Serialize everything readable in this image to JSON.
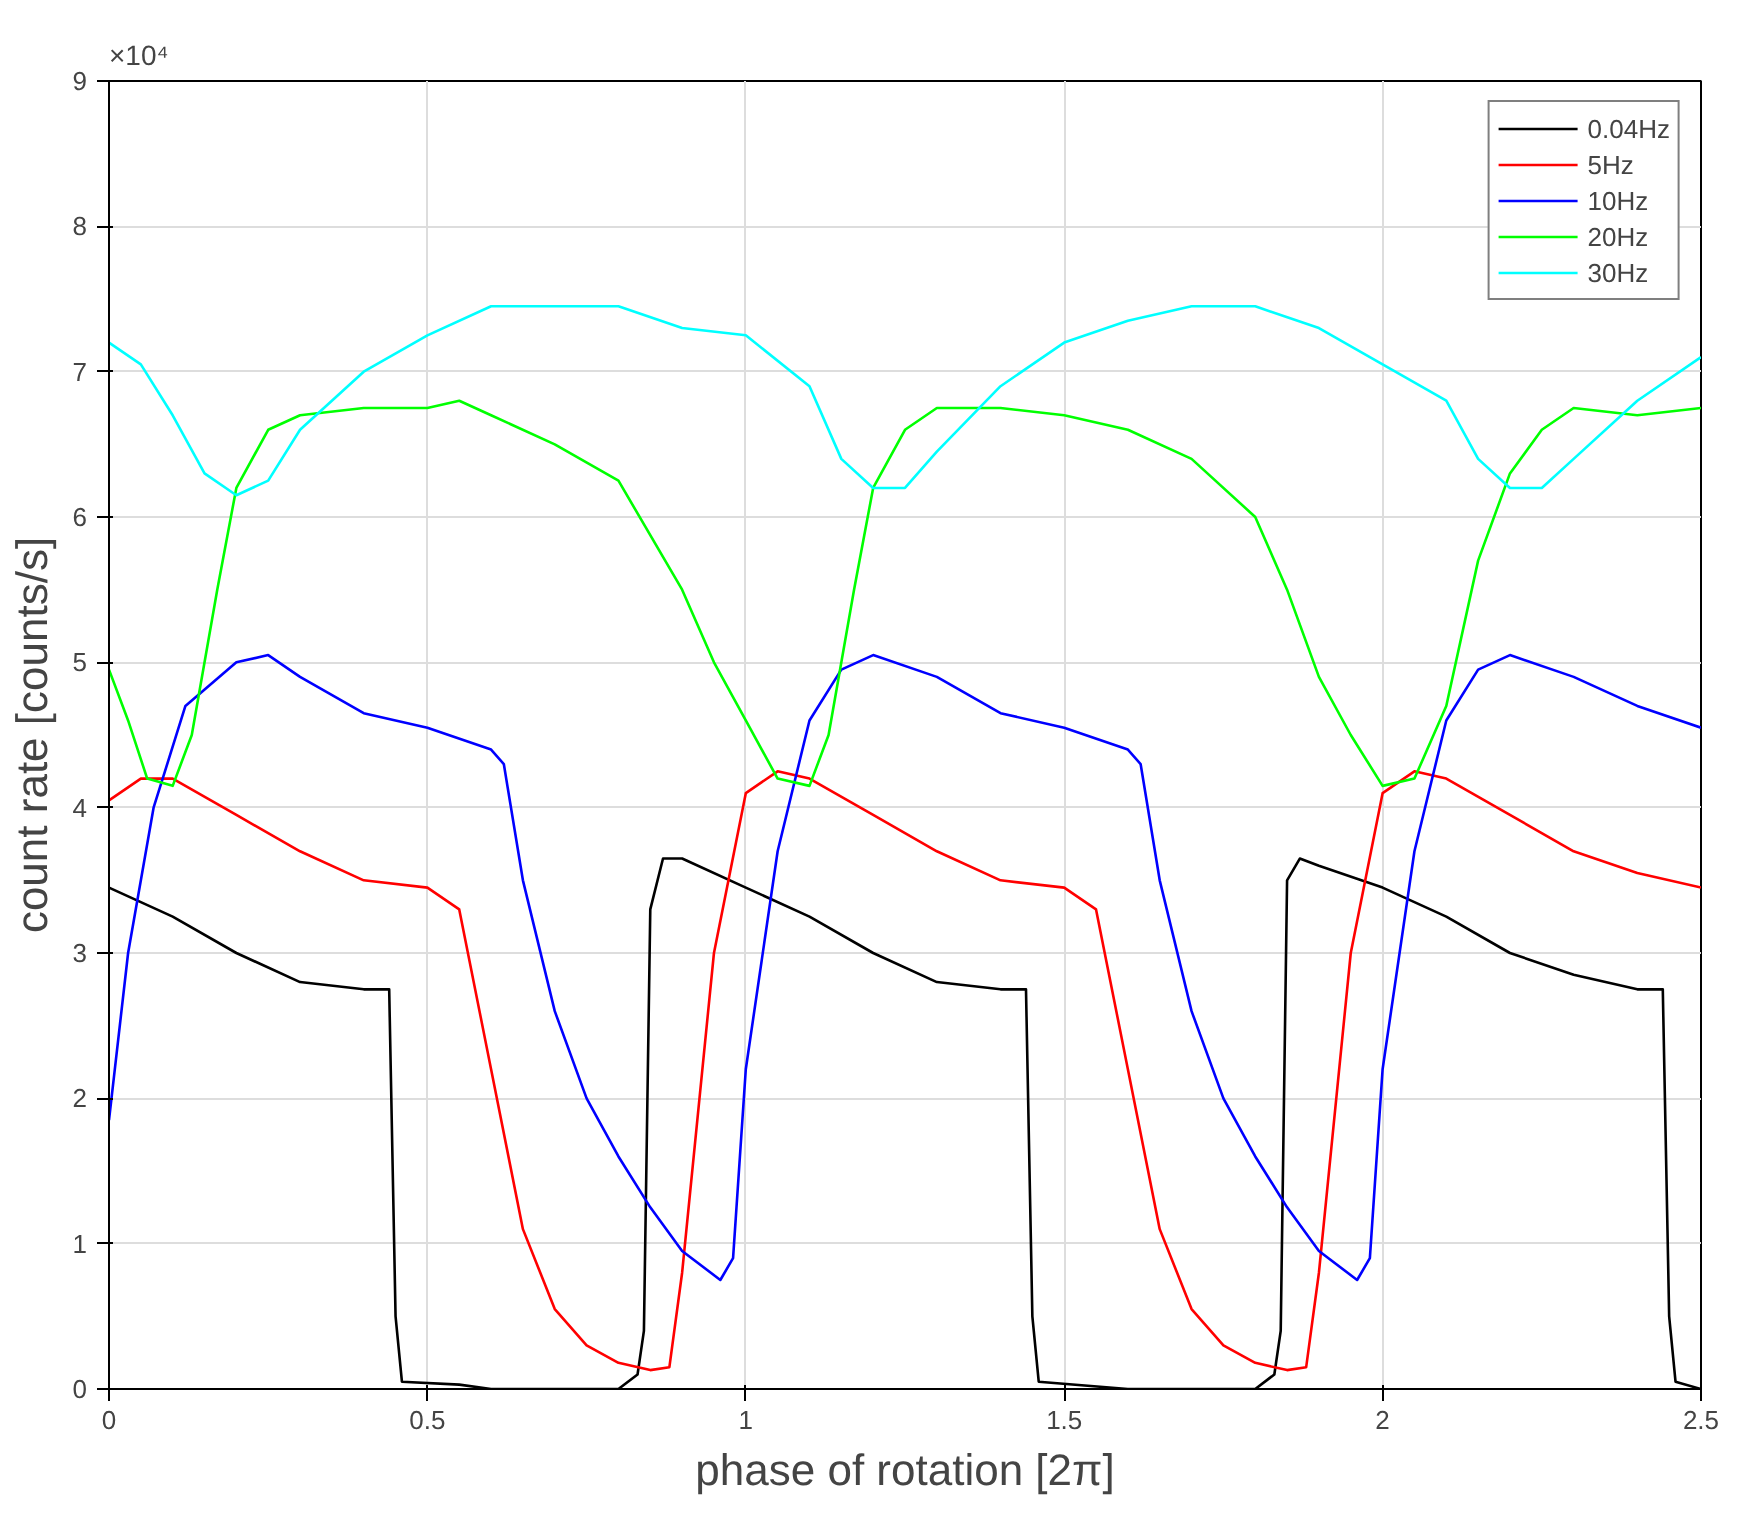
{
  "chart_data": {
    "type": "line",
    "xlabel": "phase of rotation [2π]",
    "ylabel": "count rate [counts/s]",
    "annotations": [
      "×10⁴"
    ],
    "xlim": [
      0,
      2.5
    ],
    "ylim": [
      0,
      9
    ],
    "xticks": [
      0,
      0.5,
      1,
      1.5,
      2,
      2.5
    ],
    "yticks": [
      0,
      1,
      2,
      3,
      4,
      5,
      6,
      7,
      8,
      9
    ],
    "grid": true,
    "legend": "top right",
    "marker": "none",
    "line_style": "solid",
    "series": [
      {
        "name": "0.04Hz",
        "color": "#000000",
        "x": [
          0,
          0.1,
          0.2,
          0.3,
          0.4,
          0.44,
          0.45,
          0.46,
          0.55,
          0.6,
          0.8,
          0.83,
          0.84,
          0.85,
          0.87,
          0.9,
          1.0,
          1.1,
          1.2,
          1.3,
          1.4,
          1.44,
          1.45,
          1.46,
          1.6,
          1.8,
          1.83,
          1.84,
          1.85,
          1.87,
          1.9,
          2.0,
          2.1,
          2.2,
          2.3,
          2.4,
          2.44,
          2.45,
          2.46,
          2.5
        ],
        "values": [
          3.45,
          3.25,
          3.0,
          2.8,
          2.75,
          2.75,
          0.5,
          0.05,
          0.03,
          0,
          0,
          0.1,
          0.4,
          3.3,
          3.65,
          3.65,
          3.45,
          3.25,
          3.0,
          2.8,
          2.75,
          2.75,
          0.5,
          0.05,
          0,
          0,
          0.1,
          0.4,
          3.5,
          3.65,
          3.6,
          3.45,
          3.25,
          3.0,
          2.85,
          2.75,
          2.75,
          0.5,
          0.05,
          0
        ]
      },
      {
        "name": "5Hz",
        "color": "#ff0000",
        "x": [
          0,
          0.05,
          0.1,
          0.2,
          0.3,
          0.4,
          0.5,
          0.55,
          0.6,
          0.65,
          0.7,
          0.75,
          0.8,
          0.85,
          0.88,
          0.9,
          0.95,
          1.0,
          1.05,
          1.1,
          1.2,
          1.3,
          1.4,
          1.5,
          1.55,
          1.6,
          1.65,
          1.7,
          1.75,
          1.8,
          1.85,
          1.88,
          1.9,
          1.95,
          2.0,
          2.05,
          2.1,
          2.2,
          2.3,
          2.4,
          2.5
        ],
        "values": [
          4.05,
          4.2,
          4.2,
          3.95,
          3.7,
          3.5,
          3.45,
          3.3,
          2.2,
          1.1,
          0.55,
          0.3,
          0.18,
          0.13,
          0.15,
          0.8,
          3.0,
          4.1,
          4.25,
          4.2,
          3.95,
          3.7,
          3.5,
          3.45,
          3.3,
          2.2,
          1.1,
          0.55,
          0.3,
          0.18,
          0.13,
          0.15,
          0.8,
          3.0,
          4.1,
          4.25,
          4.2,
          3.95,
          3.7,
          3.55,
          3.45
        ]
      },
      {
        "name": "10Hz",
        "color": "#0000ff",
        "x": [
          0,
          0.03,
          0.07,
          0.12,
          0.2,
          0.25,
          0.3,
          0.4,
          0.5,
          0.6,
          0.62,
          0.65,
          0.7,
          0.75,
          0.8,
          0.85,
          0.9,
          0.96,
          0.98,
          1.0,
          1.05,
          1.1,
          1.15,
          1.2,
          1.3,
          1.4,
          1.5,
          1.6,
          1.62,
          1.65,
          1.7,
          1.75,
          1.8,
          1.85,
          1.9,
          1.96,
          1.98,
          2.0,
          2.05,
          2.1,
          2.15,
          2.2,
          2.3,
          2.4,
          2.5
        ],
        "values": [
          1.85,
          3.0,
          4.0,
          4.7,
          5.0,
          5.05,
          4.9,
          4.65,
          4.55,
          4.4,
          4.3,
          3.5,
          2.6,
          2.0,
          1.6,
          1.25,
          0.95,
          0.75,
          0.9,
          2.2,
          3.7,
          4.6,
          4.95,
          5.05,
          4.9,
          4.65,
          4.55,
          4.4,
          4.3,
          3.5,
          2.6,
          2.0,
          1.6,
          1.25,
          0.95,
          0.75,
          0.9,
          2.2,
          3.7,
          4.6,
          4.95,
          5.05,
          4.9,
          4.7,
          4.55
        ]
      },
      {
        "name": "20Hz",
        "color": "#00ff00",
        "x": [
          0,
          0.03,
          0.06,
          0.1,
          0.13,
          0.17,
          0.2,
          0.25,
          0.3,
          0.4,
          0.5,
          0.55,
          0.6,
          0.7,
          0.8,
          0.9,
          0.95,
          1.0,
          1.05,
          1.1,
          1.13,
          1.17,
          1.2,
          1.25,
          1.3,
          1.4,
          1.5,
          1.6,
          1.7,
          1.8,
          1.85,
          1.9,
          1.95,
          2.0,
          2.05,
          2.1,
          2.15,
          2.2,
          2.25,
          2.3,
          2.4,
          2.5
        ],
        "values": [
          4.95,
          4.6,
          4.2,
          4.15,
          4.5,
          5.5,
          6.2,
          6.6,
          6.7,
          6.75,
          6.75,
          6.8,
          6.7,
          6.5,
          6.25,
          5.5,
          5.0,
          4.6,
          4.2,
          4.15,
          4.5,
          5.5,
          6.2,
          6.6,
          6.75,
          6.75,
          6.7,
          6.6,
          6.4,
          6.0,
          5.5,
          4.9,
          4.5,
          4.15,
          4.2,
          4.7,
          5.7,
          6.3,
          6.6,
          6.75,
          6.7,
          6.75
        ]
      },
      {
        "name": "30Hz",
        "color": "#00ffff",
        "x": [
          0,
          0.05,
          0.1,
          0.15,
          0.2,
          0.25,
          0.3,
          0.4,
          0.5,
          0.6,
          0.7,
          0.8,
          0.9,
          1.0,
          1.1,
          1.15,
          1.2,
          1.25,
          1.3,
          1.4,
          1.5,
          1.6,
          1.7,
          1.8,
          1.9,
          2.0,
          2.1,
          2.15,
          2.2,
          2.25,
          2.3,
          2.4,
          2.5
        ],
        "values": [
          7.2,
          7.05,
          6.7,
          6.3,
          6.15,
          6.25,
          6.6,
          7.0,
          7.25,
          7.45,
          7.45,
          7.45,
          7.3,
          7.25,
          6.9,
          6.4,
          6.2,
          6.2,
          6.45,
          6.9,
          7.2,
          7.35,
          7.45,
          7.45,
          7.3,
          7.05,
          6.8,
          6.4,
          6.2,
          6.2,
          6.4,
          6.8,
          7.1
        ]
      }
    ]
  }
}
